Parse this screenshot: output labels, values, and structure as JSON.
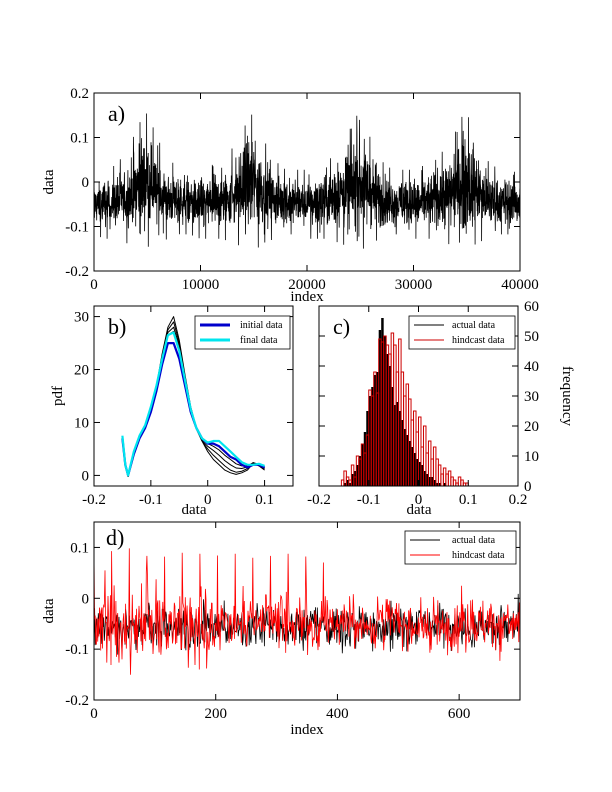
{
  "chart_data": [
    {
      "panel": "a)",
      "type": "line",
      "xlabel": "index",
      "ylabel": "data",
      "xlim": [
        0,
        40000
      ],
      "ylim": [
        -0.2,
        0.2
      ],
      "xticks": [
        0,
        10000,
        20000,
        30000,
        40000
      ],
      "yticks": [
        -0.2,
        -0.1,
        0,
        0.1,
        0.2
      ],
      "series": [
        {
          "color": "#000000",
          "envelope_x": [
            0,
            1000,
            2000,
            3000,
            4000,
            4500,
            5000,
            5500,
            6000,
            7000,
            8000,
            9000,
            10000,
            11000,
            12000,
            13000,
            14000,
            14500,
            15000,
            15500,
            16000,
            17000,
            18000,
            19000,
            20000,
            21000,
            22000,
            23000,
            24000,
            24500,
            25000,
            25500,
            26000,
            27000,
            28000,
            29000,
            30000,
            31000,
            32000,
            33000,
            34000,
            34500,
            35000,
            35500,
            36000,
            37000,
            38000,
            39000,
            40000
          ],
          "envelope_upper": [
            0.02,
            0.03,
            0.04,
            0.07,
            0.12,
            0.15,
            0.16,
            0.13,
            0.1,
            0.05,
            0.04,
            0.03,
            0.03,
            0.04,
            0.05,
            0.08,
            0.12,
            0.15,
            0.16,
            0.13,
            0.1,
            0.05,
            0.03,
            0.03,
            0.03,
            0.04,
            0.05,
            0.08,
            0.12,
            0.15,
            0.16,
            0.13,
            0.1,
            0.05,
            0.03,
            0.03,
            0.03,
            0.04,
            0.05,
            0.08,
            0.12,
            0.15,
            0.16,
            0.13,
            0.1,
            0.05,
            0.03,
            0.03,
            0.02
          ],
          "envelope_lower": [
            -0.12,
            -0.13,
            -0.13,
            -0.14,
            -0.15,
            -0.16,
            -0.16,
            -0.15,
            -0.14,
            -0.13,
            -0.12,
            -0.12,
            -0.13,
            -0.13,
            -0.13,
            -0.14,
            -0.15,
            -0.16,
            -0.16,
            -0.15,
            -0.14,
            -0.13,
            -0.12,
            -0.12,
            -0.13,
            -0.13,
            -0.13,
            -0.14,
            -0.15,
            -0.16,
            -0.16,
            -0.15,
            -0.14,
            -0.13,
            -0.12,
            -0.12,
            -0.13,
            -0.13,
            -0.13,
            -0.14,
            -0.15,
            -0.16,
            -0.16,
            -0.15,
            -0.14,
            -0.13,
            -0.12,
            -0.12,
            -0.12
          ]
        }
      ]
    },
    {
      "panel": "b)",
      "type": "line",
      "xlabel": "data",
      "ylabel": "pdf",
      "xlim": [
        -0.2,
        0.15
      ],
      "ylim": [
        -2,
        32
      ],
      "xticks": [
        -0.2,
        -0.1,
        0,
        0.1
      ],
      "yticks": [
        0,
        10,
        20,
        30
      ],
      "x": [
        -0.15,
        -0.145,
        -0.14,
        -0.13,
        -0.12,
        -0.11,
        -0.1,
        -0.09,
        -0.08,
        -0.07,
        -0.06,
        -0.05,
        -0.04,
        -0.03,
        -0.02,
        -0.01,
        0,
        0.01,
        0.02,
        0.03,
        0.04,
        0.05,
        0.06,
        0.07,
        0.08,
        0.09,
        0.1
      ],
      "series": [
        {
          "name": "initial data",
          "color": "#0000cc",
          "values": [
            7,
            2,
            0,
            4,
            7,
            9,
            12,
            16,
            21,
            25,
            25,
            22,
            17,
            12,
            9,
            7,
            6,
            6,
            5.5,
            4.5,
            3.5,
            3,
            2,
            1.5,
            2,
            2,
            1.5
          ]
        },
        {
          "name": "final data",
          "color": "#00e5ee",
          "values": [
            7.5,
            2,
            0,
            4.5,
            7.5,
            9.5,
            13,
            17,
            22,
            26.5,
            27,
            23.5,
            18,
            12.5,
            9,
            7,
            6.2,
            6.5,
            6.5,
            5.5,
            4.5,
            3.5,
            2.5,
            2,
            2,
            2.2,
            1.8
          ]
        },
        {
          "color": "#000000",
          "values": [
            7,
            1.8,
            -0.2,
            4,
            7,
            9,
            12.5,
            17,
            23,
            28,
            30,
            25.5,
            19,
            13,
            9,
            6.5,
            4.5,
            3,
            2,
            1,
            0.5,
            0.2,
            0.5,
            1,
            2.3,
            1.8,
            1
          ]
        },
        {
          "color": "#000000",
          "values": [
            7,
            1.8,
            -0.2,
            4,
            7,
            9,
            12.5,
            17,
            22.5,
            27.5,
            29,
            25,
            18.5,
            12.5,
            8.8,
            6.5,
            5,
            3.8,
            2.8,
            1.8,
            1,
            0.6,
            0.8,
            1.3,
            2.4,
            1.9,
            1.2
          ]
        },
        {
          "color": "#000000",
          "values": [
            7,
            1.8,
            -0.2,
            4.2,
            7.2,
            9.2,
            12.5,
            17,
            22.3,
            27,
            28,
            24.5,
            18.2,
            12.5,
            8.8,
            6.6,
            5.5,
            4.7,
            3.8,
            2.8,
            2,
            1.4,
            1.3,
            1.6,
            2.4,
            2,
            1.4
          ]
        },
        {
          "color": "#000000",
          "values": [
            7,
            1.8,
            -0.2,
            4.3,
            7.3,
            9.3,
            12.6,
            17,
            22,
            26.5,
            27.2,
            24,
            18,
            12.5,
            8.9,
            6.8,
            6,
            5.5,
            4.8,
            3.8,
            3,
            2.2,
            1.8,
            1.8,
            2.4,
            2.1,
            1.5
          ]
        }
      ],
      "legend_position": "top-right"
    },
    {
      "panel": "c)",
      "type": "bar",
      "xlabel": "data",
      "ylabel": "frequency",
      "xlim": [
        -0.2,
        0.2
      ],
      "ylim": [
        0,
        60
      ],
      "xticks": [
        -0.2,
        -0.1,
        0,
        0.1,
        0.2
      ],
      "yticks": [
        0,
        10,
        20,
        30,
        40,
        50,
        60
      ],
      "bin_width": 0.005,
      "bin_starts": [
        -0.155,
        -0.15,
        -0.145,
        -0.14,
        -0.135,
        -0.13,
        -0.125,
        -0.12,
        -0.115,
        -0.11,
        -0.105,
        -0.1,
        -0.095,
        -0.09,
        -0.085,
        -0.08,
        -0.075,
        -0.07,
        -0.065,
        -0.06,
        -0.055,
        -0.05,
        -0.045,
        -0.04,
        -0.035,
        -0.03,
        -0.025,
        -0.02,
        -0.015,
        -0.01,
        -0.005,
        0,
        0.005,
        0.01,
        0.015,
        0.02,
        0.025,
        0.03,
        0.035,
        0.04,
        0.045,
        0.05,
        0.055,
        0.06,
        0.065,
        0.07,
        0.075,
        0.08,
        0.085,
        0.09,
        0.095
      ],
      "series": [
        {
          "name": "actual data",
          "color": "#000000",
          "values": [
            0,
            1,
            2,
            1,
            4,
            5,
            7,
            10,
            14,
            18,
            25,
            30,
            33,
            37,
            38,
            52,
            56,
            50,
            44,
            40,
            33,
            27,
            28,
            25,
            22,
            19,
            17,
            15,
            13,
            11,
            9,
            8,
            7,
            5,
            4,
            3,
            3,
            2,
            1,
            1,
            0,
            1,
            0,
            0,
            0,
            0,
            0,
            0,
            0,
            0,
            0
          ]
        },
        {
          "name": "hindcast data",
          "color": "#cc0000",
          "values": [
            2,
            5,
            3,
            2,
            7,
            3,
            10,
            9,
            14,
            11,
            17,
            32,
            30,
            38,
            31,
            49,
            48,
            50,
            47,
            44,
            51,
            47,
            38,
            49,
            38,
            30,
            34,
            29,
            22,
            25,
            18,
            23,
            13,
            20,
            11,
            15,
            9,
            13,
            9,
            7,
            4,
            6,
            4,
            5,
            3,
            2,
            1,
            3,
            2,
            1,
            1
          ]
        }
      ],
      "legend_position": "top-right"
    },
    {
      "panel": "d)",
      "type": "line",
      "xlabel": "index",
      "ylabel": "data",
      "xlim": [
        0,
        700
      ],
      "ylim": [
        -0.2,
        0.15
      ],
      "xticks": [
        0,
        200,
        400,
        600
      ],
      "yticks": [
        -0.2,
        -0.1,
        0,
        0.1
      ],
      "series": [
        {
          "name": "actual data",
          "color": "#000000"
        },
        {
          "name": "hindcast data",
          "color": "#ff0000"
        }
      ],
      "legend_position": "top-right"
    }
  ]
}
